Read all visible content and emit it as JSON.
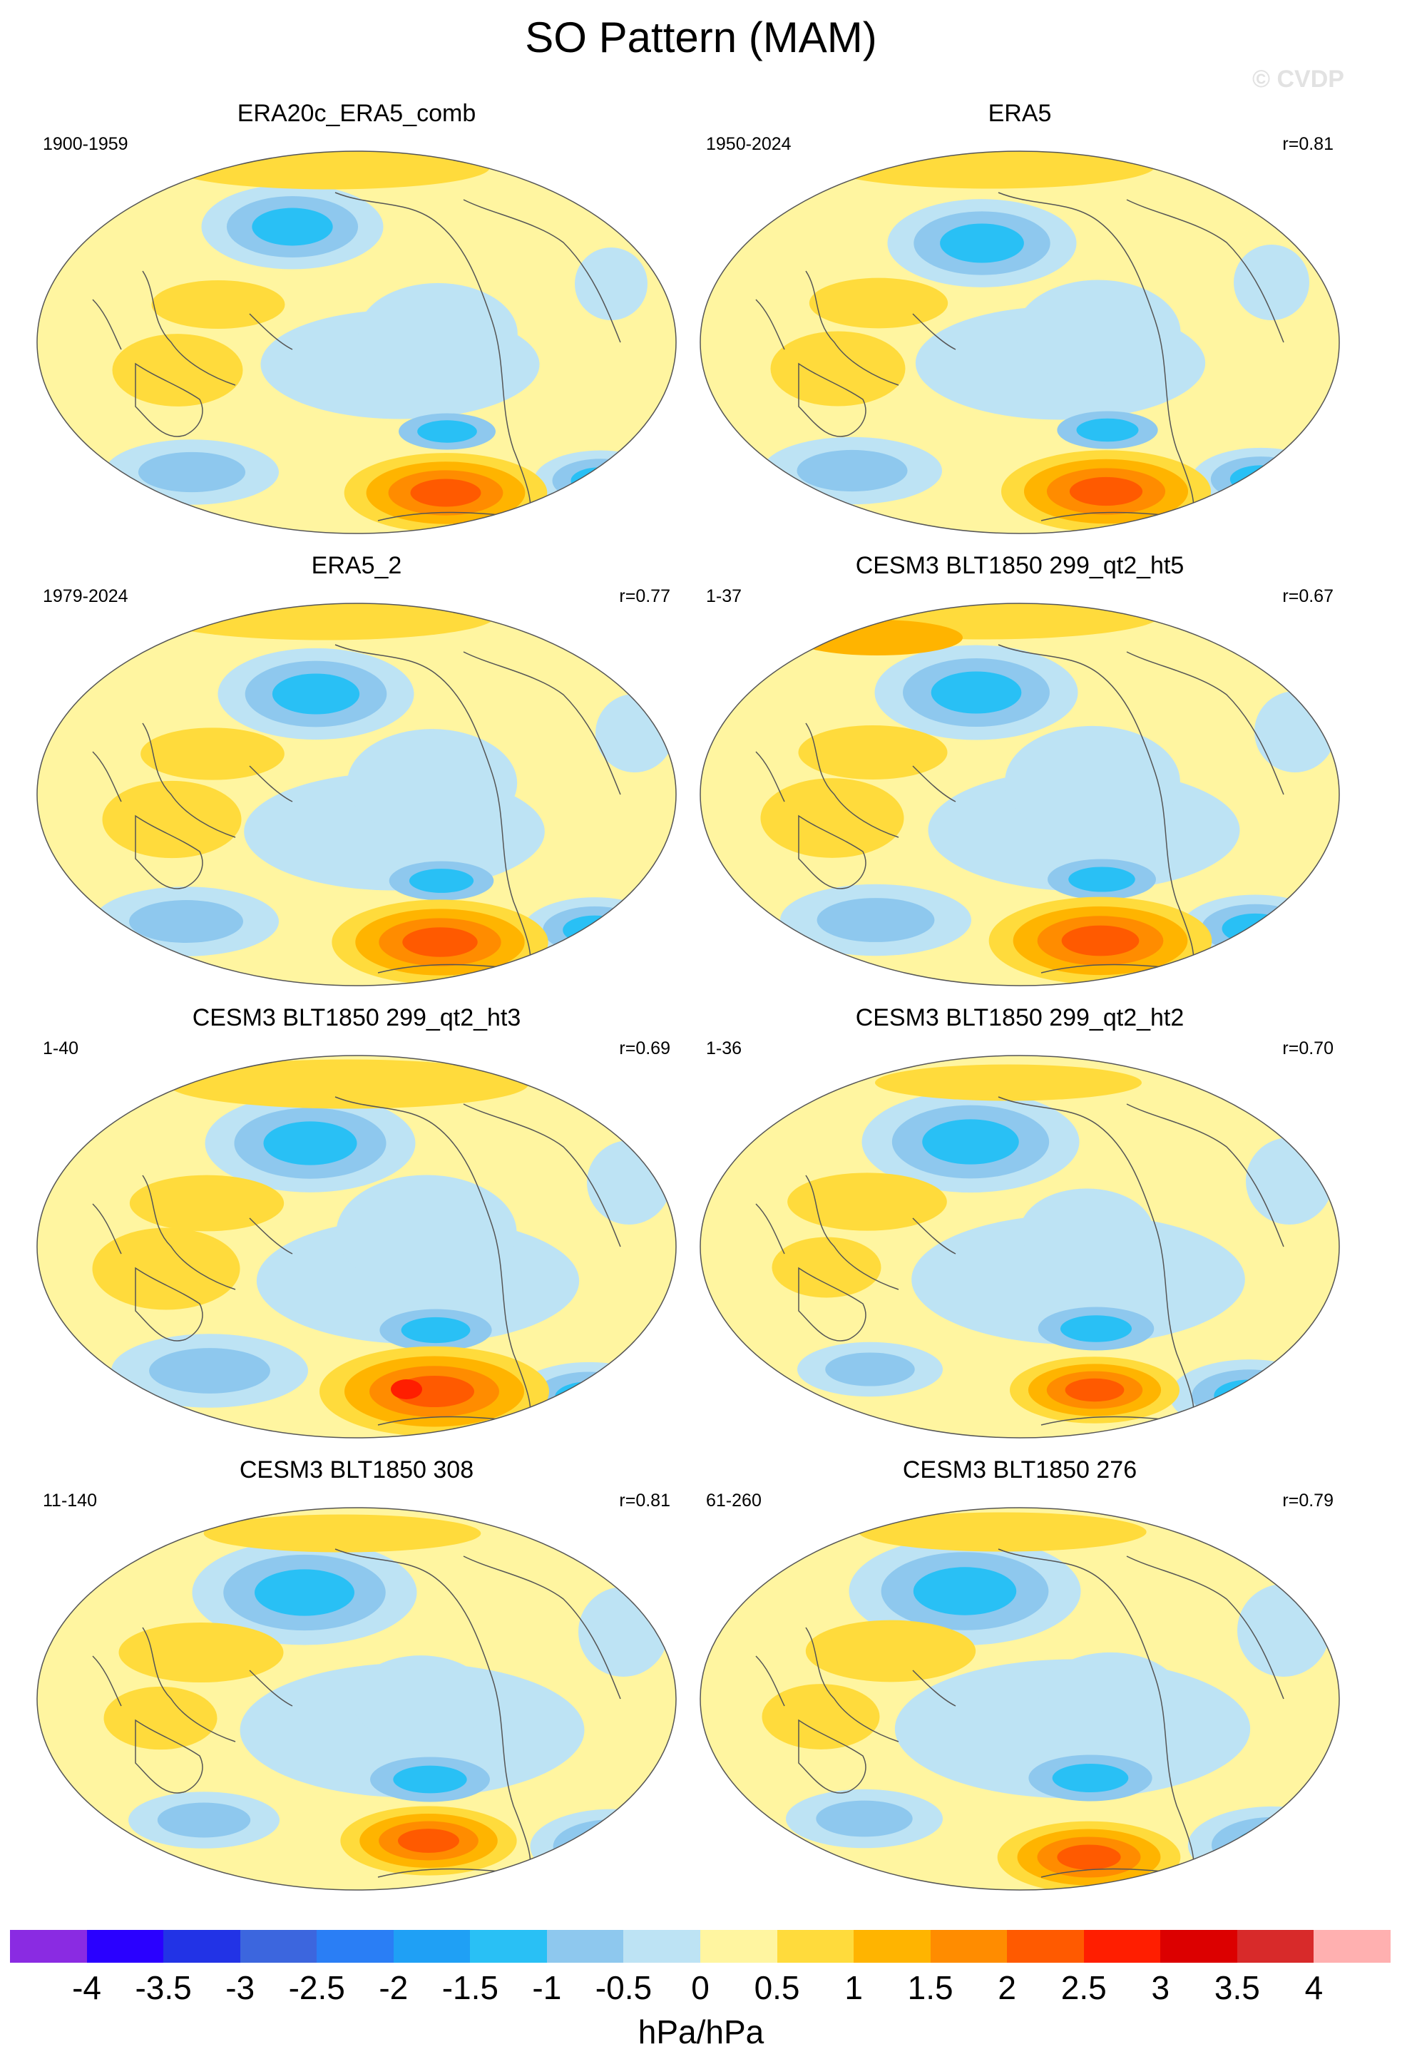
{
  "figure": {
    "title": "SO Pattern (MAM)",
    "watermark": "© CVDP"
  },
  "panels": [
    {
      "name": "ERA20c_ERA5_comb",
      "years": "1900-1959",
      "corr": "",
      "variant": 0
    },
    {
      "name": "ERA5",
      "years": "1950-2024",
      "corr": "r=0.81",
      "variant": 1
    },
    {
      "name": "ERA5_2",
      "years": "1979-2024",
      "corr": "r=0.77",
      "variant": 2
    },
    {
      "name": "CESM3 BLT1850 299_qt2_ht5",
      "years": "1-37",
      "corr": "r=0.67",
      "variant": 3
    },
    {
      "name": "CESM3 BLT1850 299_qt2_ht3",
      "years": "1-40",
      "corr": "r=0.69",
      "variant": 4
    },
    {
      "name": "CESM3 BLT1850 299_qt2_ht2",
      "years": "1-36",
      "corr": "r=0.70",
      "variant": 5
    },
    {
      "name": "CESM3 BLT1850 308",
      "years": "11-140",
      "corr": "r=0.81",
      "variant": 6
    },
    {
      "name": "CESM3 BLT1850 276",
      "years": "61-260",
      "corr": "r=0.79",
      "variant": 7
    }
  ],
  "colorbar": {
    "units": "hPa/hPa",
    "labels": [
      "-4",
      "-3.5",
      "-3",
      "-2.5",
      "-2",
      "-1.5",
      "-1",
      "-0.5",
      "0",
      "0.5",
      "1",
      "1.5",
      "2",
      "2.5",
      "3",
      "3.5",
      "4"
    ],
    "colors": [
      "#8a2be2",
      "#2a00ff",
      "#2233e6",
      "#3c66de",
      "#2a7ef5",
      "#1fa0f5",
      "#29c0f5",
      "#8ec8ee",
      "#bde3f4",
      "#fff5a0",
      "#ffdb3c",
      "#ffb400",
      "#ff8c00",
      "#ff5a00",
      "#ff1e00",
      "#dc0000",
      "#d82a2a",
      "#ffb0b0"
    ]
  },
  "map_colors": {
    "ocean_base": "#fff5a0",
    "pos1": "#ffdb3c",
    "pos2": "#ffb400",
    "pos3": "#ff8c00",
    "pos4": "#ff5a00",
    "pos5": "#ff1e00",
    "neg1": "#bde3f4",
    "neg2": "#8ec8ee",
    "neg3": "#29c0f5",
    "neg4": "#1fa0f5",
    "coast": "#555555"
  }
}
